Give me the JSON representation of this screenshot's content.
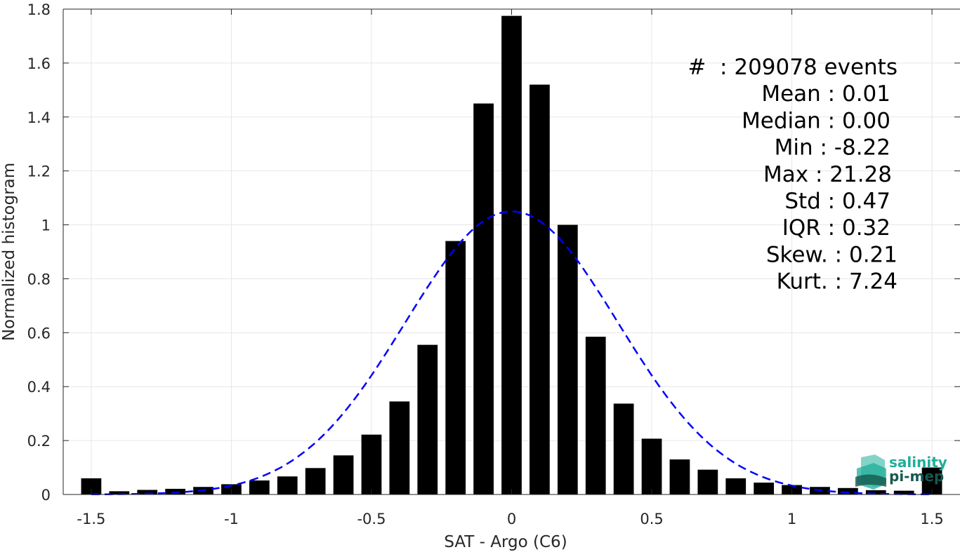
{
  "chart_data": {
    "type": "bar",
    "xlabel": "SAT - Argo (C6)",
    "ylabel": "Normalized histogram",
    "xlim": [
      -1.6,
      1.6
    ],
    "ylim": [
      0,
      1.8
    ],
    "grid": true,
    "xticks": [
      -1.5,
      -1,
      -0.5,
      0,
      0.5,
      1,
      1.5
    ],
    "xtick_labels": [
      "-1.5",
      "-1",
      "-0.5",
      "0",
      "0.5",
      "1",
      "1.5"
    ],
    "yticks": [
      0,
      0.2,
      0.4,
      0.6,
      0.8,
      1,
      1.2,
      1.4,
      1.6,
      1.8
    ],
    "ytick_labels": [
      "0",
      "0.2",
      "0.4",
      "0.6",
      "0.8",
      "1",
      "1.2",
      "1.4",
      "1.6",
      "1.8"
    ],
    "bar_color": "#000000",
    "x": [
      -1.5,
      -1.4,
      -1.3,
      -1.2,
      -1.1,
      -1.0,
      -0.9,
      -0.8,
      -0.7,
      -0.6,
      -0.5,
      -0.4,
      -0.3,
      -0.2,
      -0.1,
      0.0,
      0.1,
      0.2,
      0.3,
      0.4,
      0.5,
      0.6,
      0.7,
      0.8,
      0.9,
      1.0,
      1.1,
      1.2,
      1.3,
      1.4,
      1.5
    ],
    "values": [
      0.06,
      0.012,
      0.017,
      0.021,
      0.028,
      0.038,
      0.052,
      0.067,
      0.098,
      0.145,
      0.222,
      0.345,
      0.555,
      0.94,
      1.45,
      1.775,
      1.52,
      1.0,
      0.585,
      0.337,
      0.207,
      0.13,
      0.092,
      0.06,
      0.044,
      0.035,
      0.028,
      0.024,
      0.016,
      0.014,
      0.1
    ],
    "fit": {
      "type": "gaussian",
      "mean": 0.0,
      "std": 0.38,
      "peak": 1.05,
      "x_range": [
        -1.5,
        1.5
      ],
      "color": "#0000ff",
      "style": "dashed"
    },
    "annotations": [
      "#  : 209078 events",
      "Mean : 0.01",
      "Median : 0.00",
      "Min : -8.22",
      "Max : 21.28",
      "Std : 0.47",
      "IQR : 0.32",
      "Skew. : 0.21",
      "Kurt. : 7.24"
    ]
  },
  "logo": {
    "line1": "salinity",
    "line2": "pi-mep",
    "color1": "#1fae9a",
    "color2": "#16594f"
  }
}
